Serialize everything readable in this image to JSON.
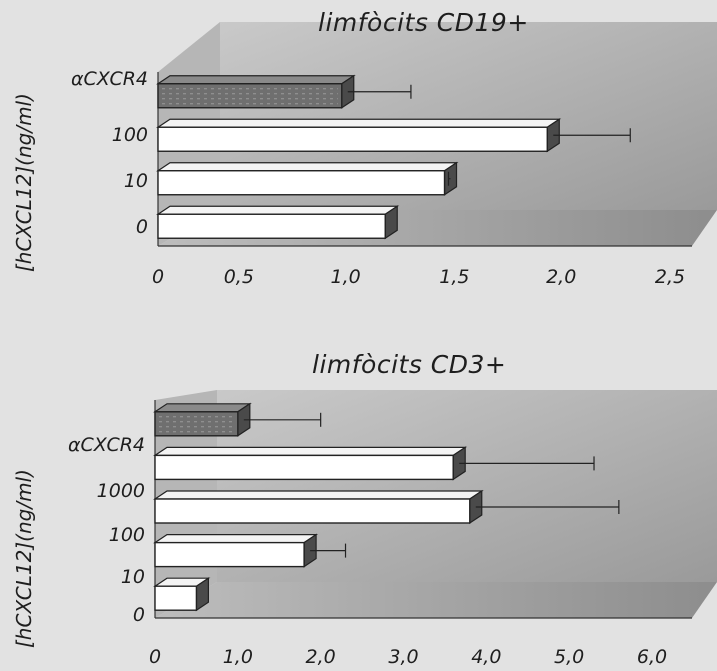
{
  "chart_data": [
    {
      "type": "bar",
      "orientation": "horizontal",
      "title": "limfòcits CD19+",
      "ylabel": "[hCXCL12](ng/ml)",
      "xlabel": "",
      "categories": [
        "αCXCR4",
        "100",
        "10",
        "0"
      ],
      "values": [
        0.93,
        1.97,
        1.45,
        1.15
      ],
      "errors": [
        0.35,
        0.42,
        0.02,
        0.0
      ],
      "shaded": [
        true,
        false,
        false,
        false
      ],
      "xlim": [
        0,
        2.5
      ],
      "x_ticks": [
        "0",
        "0,5",
        "1,0",
        "1,5",
        "2,0",
        "2,5"
      ],
      "grid": false
    },
    {
      "type": "bar",
      "orientation": "horizontal",
      "title": "limfòcits CD3+",
      "ylabel": "[hCXCL12](ng/ml)",
      "xlabel": "",
      "categories": [
        "αCXCR4",
        "1000",
        "100",
        "10",
        "0"
      ],
      "values": [
        1.0,
        3.6,
        3.8,
        1.8,
        0.5
      ],
      "errors": [
        1.0,
        1.7,
        1.8,
        0.5,
        0.0
      ],
      "shaded": [
        true,
        false,
        false,
        false,
        false
      ],
      "xlim": [
        0,
        6.0
      ],
      "x_ticks": [
        "0",
        "1,0",
        "2,0",
        "3,0",
        "4,0",
        "5,0",
        "6,0"
      ],
      "grid": false
    }
  ]
}
